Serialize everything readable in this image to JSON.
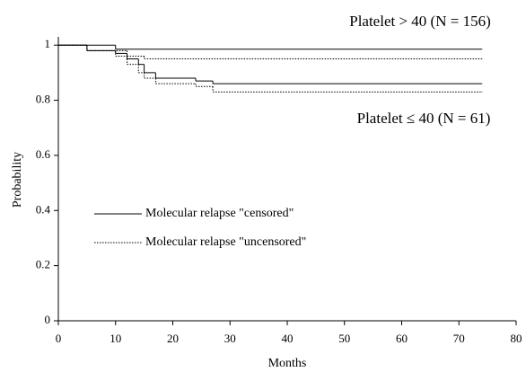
{
  "chart_data": {
    "type": "line",
    "step": true,
    "xlabel": "Months",
    "ylabel": "Probability",
    "xlim": [
      0,
      80
    ],
    "ylim": [
      0,
      1.03
    ],
    "xticks": [
      0,
      10,
      20,
      30,
      40,
      50,
      60,
      70,
      80
    ],
    "yticks": [
      0,
      0.2,
      0.4,
      0.6,
      0.8,
      1
    ],
    "legend": [
      {
        "label": "Molecular relapse \"censored\"",
        "style": "solid"
      },
      {
        "label": "Molecular relapse \"uncensored\"",
        "style": "dotted"
      }
    ],
    "groups": [
      {
        "label": "Platelet > 40 (N = 156)",
        "series": [
          {
            "style": "solid",
            "x": [
              0,
              10,
              74
            ],
            "values": [
              1,
              0.985,
              0.985
            ]
          },
          {
            "style": "dotted",
            "x": [
              0,
              5,
              12,
              15,
              74
            ],
            "values": [
              1,
              0.98,
              0.96,
              0.95,
              0.95
            ]
          }
        ]
      },
      {
        "label": "Platelet ≤ 40 (N = 61)",
        "series": [
          {
            "style": "solid",
            "x": [
              0,
              5,
              10,
              12,
              14,
              15,
              17,
              24,
              27,
              74
            ],
            "values": [
              1,
              0.98,
              0.97,
              0.95,
              0.93,
              0.9,
              0.88,
              0.87,
              0.86,
              0.86
            ]
          },
          {
            "style": "dotted",
            "x": [
              0,
              5,
              10,
              12,
              14,
              15,
              17,
              24,
              27,
              74
            ],
            "values": [
              1,
              0.98,
              0.96,
              0.93,
              0.9,
              0.88,
              0.86,
              0.85,
              0.83,
              0.83
            ]
          }
        ]
      }
    ]
  }
}
